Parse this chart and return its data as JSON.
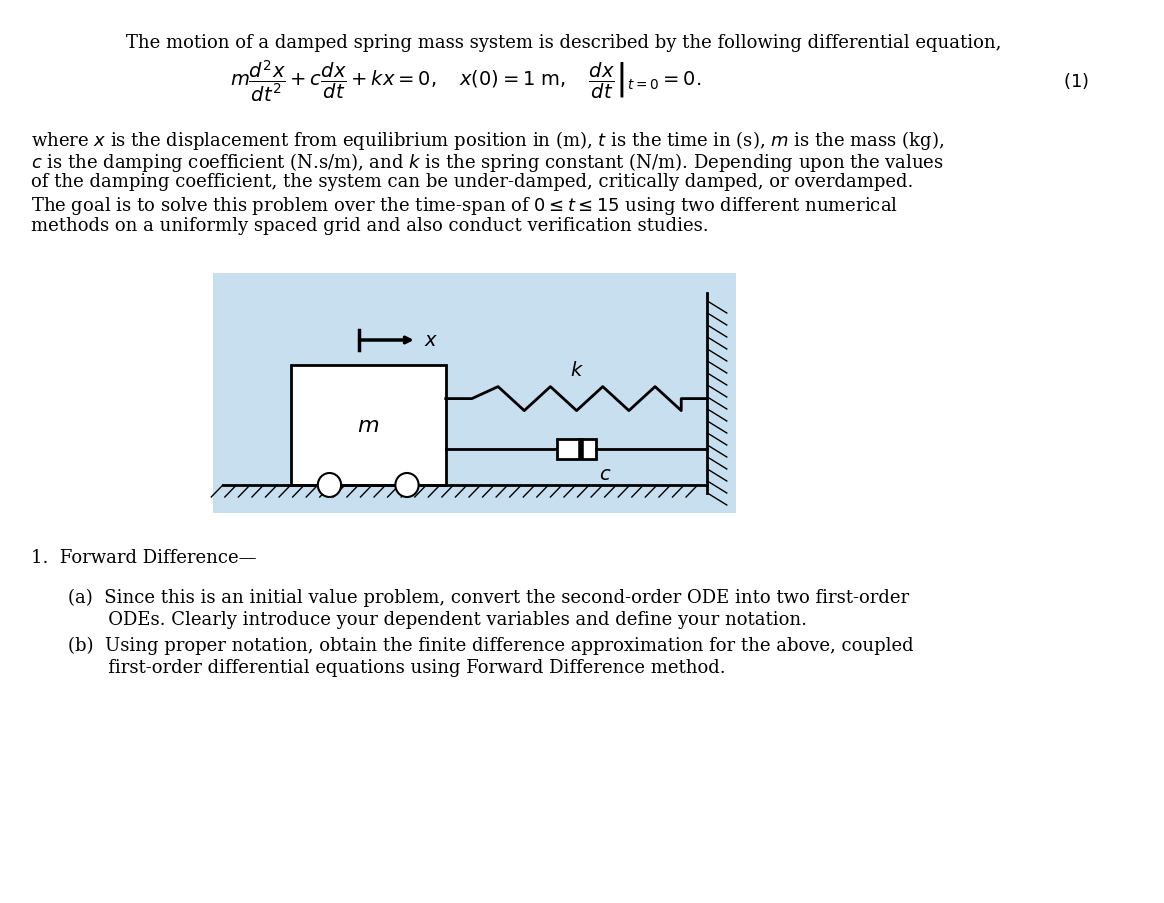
{
  "title_text": "The motion of a damped spring mass system is described by the following differential equation,",
  "paragraph1": "where $x$ is the displacement from equilibrium position in (m), $t$ is the time in (s), $m$ is the mass (kg),\n$c$ is the damping coefficient (N.s/m), and $k$ is the spring constant (N/m). Depending upon the values\nof the damping coefficient, the system can be under-damped, critically damped, or overdamped.\nThe goal is to solve this problem over the time-span of $0 \\leq t \\leq 15$ using two different numerical\nmethods on a uniformly spaced grid and also conduct verification studies.",
  "section1": "1.  Forward Difference—",
  "item_a": "(a)  Since this is an initial value problem, convert the second-order ODE into two first-order\n        ODEs. Clearly introduce your dependent variables and define your notation.",
  "item_b": "(b)  Using proper notation, obtain the finite difference approximation for the above, coupled\n        first-order differential equations using Forward Difference method.",
  "bg_color": "#ffffff",
  "diagram_bg": "#c8dff0",
  "font_size": 13,
  "equation_number": "(1)"
}
